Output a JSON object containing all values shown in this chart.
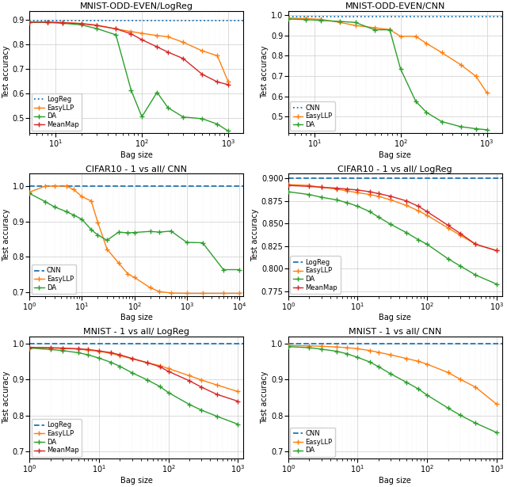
{
  "figsize": [
    6.4,
    6.15
  ],
  "dpi": 100,
  "plots": [
    {
      "title": "MNIST-ODD-EVEN/LogReg",
      "xlabel": "Bag size",
      "ylabel": "Test accuracy",
      "xscale": "log",
      "xlim_lo": 5,
      "xlim_hi": 1500,
      "ylim_lo": 0.44,
      "ylim_hi": 0.935,
      "yticks": [
        0.5,
        0.6,
        0.7,
        0.8,
        0.9
      ],
      "baseline_val": 0.894,
      "baseline_color": "#1f77b4",
      "baseline_ls": "dotted",
      "baseline_label": "LogReg",
      "series": [
        {
          "label": "EasyLLP",
          "color": "#ff7f0e",
          "marker": "+",
          "x": [
            5,
            8,
            12,
            20,
            30,
            50,
            75,
            100,
            150,
            200,
            300,
            500,
            750,
            1000
          ],
          "y": [
            0.889,
            0.889,
            0.888,
            0.884,
            0.877,
            0.862,
            0.851,
            0.844,
            0.835,
            0.83,
            0.808,
            0.773,
            0.753,
            0.648
          ]
        },
        {
          "label": "DA",
          "color": "#2ca02c",
          "marker": "+",
          "x": [
            5,
            8,
            12,
            20,
            30,
            50,
            75,
            100,
            150,
            200,
            300,
            500,
            750,
            1000
          ],
          "y": [
            0.888,
            0.888,
            0.885,
            0.878,
            0.863,
            0.838,
            0.614,
            0.506,
            0.605,
            0.543,
            0.505,
            0.498,
            0.476,
            0.448
          ]
        },
        {
          "label": "MeanMap",
          "color": "#d62728",
          "marker": "+",
          "x": [
            5,
            8,
            12,
            20,
            30,
            50,
            75,
            100,
            150,
            200,
            300,
            500,
            750,
            1000
          ],
          "y": [
            0.889,
            0.889,
            0.887,
            0.883,
            0.876,
            0.862,
            0.842,
            0.818,
            0.789,
            0.768,
            0.742,
            0.678,
            0.647,
            0.636
          ]
        }
      ],
      "legend_loc": "lower left"
    },
    {
      "title": "MNIST-ODD-EVEN/CNN",
      "xlabel": "Bag size",
      "ylabel": "Test accuracy",
      "xscale": "log",
      "xlim_lo": 5,
      "xlim_hi": 1500,
      "ylim_lo": 0.42,
      "ylim_hi": 1.02,
      "yticks": [
        0.5,
        0.6,
        0.7,
        0.8,
        0.9,
        1.0
      ],
      "baseline_val": 0.991,
      "baseline_color": "#1f77b4",
      "baseline_ls": "dotted",
      "baseline_label": "CNN",
      "series": [
        {
          "label": "EasyLLP",
          "color": "#ff7f0e",
          "marker": "+",
          "x": [
            5,
            8,
            12,
            20,
            30,
            50,
            75,
            100,
            150,
            200,
            300,
            500,
            750,
            1000
          ],
          "y": [
            0.984,
            0.982,
            0.978,
            0.963,
            0.948,
            0.937,
            0.928,
            0.895,
            0.895,
            0.86,
            0.815,
            0.755,
            0.698,
            0.618
          ]
        },
        {
          "label": "DA",
          "color": "#2ca02c",
          "marker": "+",
          "x": [
            5,
            8,
            12,
            20,
            30,
            50,
            75,
            100,
            150,
            200,
            300,
            500,
            750,
            1000
          ],
          "y": [
            0.98,
            0.977,
            0.973,
            0.968,
            0.963,
            0.927,
            0.927,
            0.735,
            0.576,
            0.521,
            0.476,
            0.451,
            0.441,
            0.436
          ]
        }
      ],
      "legend_loc": "lower left"
    },
    {
      "title": "CIFAR10 - 1 vs all/ CNN",
      "xlabel": "Bag size",
      "ylabel": "Test accuracy",
      "xscale": "log",
      "xlim_lo": 1,
      "xlim_hi": 12000,
      "ylim_lo": 0.69,
      "ylim_hi": 1.035,
      "yticks": [
        0.7,
        0.8,
        0.9,
        1.0
      ],
      "baseline_val": 1.0,
      "baseline_color": "#1f77b4",
      "baseline_ls": "dashed",
      "baseline_label": "CNN",
      "series": [
        {
          "label": "EasyLLP",
          "color": "#ff7f0e",
          "marker": "+",
          "x": [
            1,
            2,
            3,
            5,
            7,
            10,
            15,
            20,
            30,
            50,
            75,
            100,
            200,
            300,
            500,
            1000,
            2000,
            5000,
            10000
          ],
          "y": [
            0.983,
            1.0,
            1.0,
            1.0,
            0.99,
            0.97,
            0.958,
            0.898,
            0.822,
            0.783,
            0.752,
            0.742,
            0.713,
            0.702,
            0.698,
            0.697,
            0.697,
            0.697,
            0.697
          ]
        },
        {
          "label": "DA",
          "color": "#2ca02c",
          "marker": "+",
          "x": [
            1,
            2,
            3,
            5,
            7,
            10,
            15,
            20,
            30,
            50,
            75,
            100,
            200,
            300,
            500,
            1000,
            2000,
            5000,
            10000
          ],
          "y": [
            0.979,
            0.956,
            0.941,
            0.928,
            0.918,
            0.906,
            0.877,
            0.862,
            0.847,
            0.87,
            0.868,
            0.869,
            0.872,
            0.87,
            0.873,
            0.841,
            0.84,
            0.764,
            0.764
          ]
        }
      ],
      "legend_loc": "lower left"
    },
    {
      "title": "CIFAR10 - 1 vs all/ LogReg",
      "xlabel": "Bag size",
      "ylabel": "Test accuracy",
      "xscale": "log",
      "xlim_lo": 1,
      "xlim_hi": 1200,
      "ylim_lo": 0.77,
      "ylim_hi": 0.905,
      "yticks": [
        0.775,
        0.8,
        0.825,
        0.85,
        0.875,
        0.9
      ],
      "baseline_val": 0.9,
      "baseline_color": "#1f77b4",
      "baseline_ls": "dashed",
      "baseline_label": "LogReg",
      "series": [
        {
          "label": "EasyLLP",
          "color": "#ff7f0e",
          "marker": "+",
          "x": [
            1,
            2,
            3,
            5,
            7,
            10,
            15,
            20,
            30,
            50,
            75,
            100,
            200,
            300,
            500,
            1000
          ],
          "y": [
            0.893,
            0.892,
            0.89,
            0.888,
            0.886,
            0.884,
            0.882,
            0.88,
            0.876,
            0.87,
            0.864,
            0.859,
            0.845,
            0.837,
            0.827,
            0.82
          ]
        },
        {
          "label": "DA",
          "color": "#2ca02c",
          "marker": "+",
          "x": [
            1,
            2,
            3,
            5,
            7,
            10,
            15,
            20,
            30,
            50,
            75,
            100,
            200,
            300,
            500,
            1000
          ],
          "y": [
            0.885,
            0.882,
            0.879,
            0.876,
            0.873,
            0.869,
            0.863,
            0.857,
            0.849,
            0.84,
            0.832,
            0.827,
            0.811,
            0.803,
            0.793,
            0.783
          ]
        },
        {
          "label": "MeanMap",
          "color": "#d62728",
          "marker": "+",
          "x": [
            1,
            2,
            3,
            5,
            7,
            10,
            15,
            20,
            30,
            50,
            75,
            100,
            200,
            300,
            500,
            1000
          ],
          "y": [
            0.892,
            0.891,
            0.89,
            0.889,
            0.888,
            0.887,
            0.885,
            0.883,
            0.88,
            0.875,
            0.869,
            0.863,
            0.848,
            0.839,
            0.827,
            0.82
          ]
        }
      ],
      "legend_loc": "lower left"
    },
    {
      "title": "MNIST - 1 vs all/ LogReg",
      "xlabel": "Bag size",
      "ylabel": "Test accuracy",
      "xscale": "log",
      "xlim_lo": 1,
      "xlim_hi": 1200,
      "ylim_lo": 0.68,
      "ylim_hi": 1.02,
      "yticks": [
        0.7,
        0.8,
        0.9,
        1.0
      ],
      "baseline_val": 1.0,
      "baseline_color": "#1f77b4",
      "baseline_ls": "dashed",
      "baseline_label": "LogReg",
      "series": [
        {
          "label": "EasyLLP",
          "color": "#ff7f0e",
          "marker": "+",
          "x": [
            1,
            2,
            3,
            5,
            7,
            10,
            15,
            20,
            30,
            50,
            75,
            100,
            200,
            300,
            500,
            1000
          ],
          "y": [
            0.99,
            0.988,
            0.987,
            0.985,
            0.982,
            0.979,
            0.973,
            0.967,
            0.958,
            0.947,
            0.939,
            0.931,
            0.911,
            0.899,
            0.885,
            0.867
          ]
        },
        {
          "label": "DA",
          "color": "#2ca02c",
          "marker": "+",
          "x": [
            1,
            2,
            3,
            5,
            7,
            10,
            15,
            20,
            30,
            50,
            75,
            100,
            200,
            300,
            500,
            1000
          ],
          "y": [
            0.988,
            0.984,
            0.981,
            0.975,
            0.969,
            0.96,
            0.948,
            0.937,
            0.919,
            0.899,
            0.881,
            0.864,
            0.831,
            0.815,
            0.798,
            0.776
          ]
        },
        {
          "label": "MeanMap",
          "color": "#d62728",
          "marker": "+",
          "x": [
            1,
            2,
            3,
            5,
            7,
            10,
            15,
            20,
            30,
            50,
            75,
            100,
            200,
            300,
            500,
            1000
          ],
          "y": [
            0.99,
            0.989,
            0.988,
            0.986,
            0.984,
            0.98,
            0.975,
            0.969,
            0.959,
            0.947,
            0.936,
            0.923,
            0.897,
            0.879,
            0.859,
            0.84
          ]
        }
      ],
      "legend_loc": "lower left"
    },
    {
      "title": "MNIST - 1 vs all/ CNN",
      "xlabel": "Bag size",
      "ylabel": "Test accuracy",
      "xscale": "log",
      "xlim_lo": 1,
      "xlim_hi": 1200,
      "ylim_lo": 0.68,
      "ylim_hi": 1.02,
      "yticks": [
        0.7,
        0.8,
        0.9,
        1.0
      ],
      "baseline_val": 1.0,
      "baseline_color": "#1f77b4",
      "baseline_ls": "dashed",
      "baseline_label": "CNN",
      "series": [
        {
          "label": "EasyLLP",
          "color": "#ff7f0e",
          "marker": "+",
          "x": [
            1,
            2,
            3,
            5,
            7,
            10,
            15,
            20,
            30,
            50,
            75,
            100,
            200,
            300,
            500,
            1000
          ],
          "y": [
            0.995,
            0.994,
            0.993,
            0.991,
            0.989,
            0.986,
            0.981,
            0.976,
            0.969,
            0.959,
            0.951,
            0.943,
            0.92,
            0.901,
            0.879,
            0.832
          ]
        },
        {
          "label": "DA",
          "color": "#2ca02c",
          "marker": "+",
          "x": [
            1,
            2,
            3,
            5,
            7,
            10,
            15,
            20,
            30,
            50,
            75,
            100,
            200,
            300,
            500,
            1000
          ],
          "y": [
            0.992,
            0.989,
            0.985,
            0.979,
            0.972,
            0.962,
            0.949,
            0.936,
            0.916,
            0.893,
            0.874,
            0.857,
            0.821,
            0.801,
            0.779,
            0.753
          ]
        }
      ],
      "legend_loc": "lower left"
    }
  ]
}
